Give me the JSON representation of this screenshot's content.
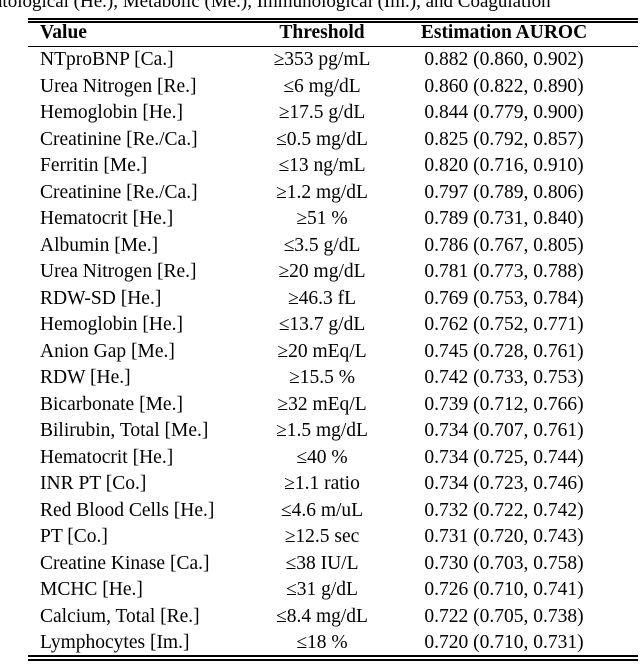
{
  "caption": "atological (He.), Metabolic (Me.), Immunological (Im.), and Coagulation",
  "table": {
    "header": [
      "Value",
      "Threshold",
      "Estimation AUROC"
    ],
    "rows": [
      [
        "NTproBNP [Ca.]",
        "≥353 pg/mL",
        "0.882 (0.860, 0.902)"
      ],
      [
        "Urea Nitrogen [Re.]",
        "≤6 mg/dL",
        "0.860 (0.822, 0.890)"
      ],
      [
        "Hemoglobin [He.]",
        "≥17.5 g/dL",
        "0.844 (0.779, 0.900)"
      ],
      [
        "Creatinine [Re./Ca.]",
        "≤0.5 mg/dL",
        "0.825 (0.792, 0.857)"
      ],
      [
        "Ferritin [Me.]",
        "≤13 ng/mL",
        "0.820 (0.716, 0.910)"
      ],
      [
        "Creatinine [Re./Ca.]",
        "≥1.2 mg/dL",
        "0.797 (0.789, 0.806)"
      ],
      [
        "Hematocrit [He.]",
        "≥51 %",
        "0.789 (0.731, 0.840)"
      ],
      [
        "Albumin [Me.]",
        "≤3.5 g/dL",
        "0.786 (0.767, 0.805)"
      ],
      [
        "Urea Nitrogen [Re.]",
        "≥20 mg/dL",
        "0.781 (0.773, 0.788)"
      ],
      [
        "RDW-SD [He.]",
        "≥46.3 fL",
        "0.769 (0.753, 0.784)"
      ],
      [
        "Hemoglobin [He.]",
        "≤13.7 g/dL",
        "0.762 (0.752, 0.771)"
      ],
      [
        "Anion Gap [Me.]",
        "≥20 mEq/L",
        "0.745 (0.728, 0.761)"
      ],
      [
        "RDW [He.]",
        "≥15.5 %",
        "0.742 (0.733, 0.753)"
      ],
      [
        "Bicarbonate [Me.]",
        "≥32 mEq/L",
        "0.739 (0.712, 0.766)"
      ],
      [
        "Bilirubin, Total [Me.]",
        "≥1.5 mg/dL",
        "0.734 (0.707, 0.761)"
      ],
      [
        "Hematocrit [He.]",
        "≤40 %",
        "0.734 (0.725, 0.744)"
      ],
      [
        "INR PT [Co.]",
        "≥1.1 ratio",
        "0.734 (0.723, 0.746)"
      ],
      [
        "Red Blood Cells [He.]",
        "≤4.6 m/uL",
        "0.732 (0.722, 0.742)"
      ],
      [
        "PT [Co.]",
        "≥12.5 sec",
        "0.731 (0.720, 0.743)"
      ],
      [
        "Creatine Kinase [Ca.]",
        "≤38 IU/L",
        "0.730 (0.703, 0.758)"
      ],
      [
        "MCHC [He.]",
        "≤31 g/dL",
        "0.726 (0.710, 0.741)"
      ],
      [
        "Calcium, Total [Re.]",
        "≤8.4 mg/dL",
        "0.722 (0.705, 0.738)"
      ],
      [
        "Lymphocytes [Im.]",
        "≤18 %",
        "0.720 (0.710, 0.731)"
      ]
    ]
  }
}
